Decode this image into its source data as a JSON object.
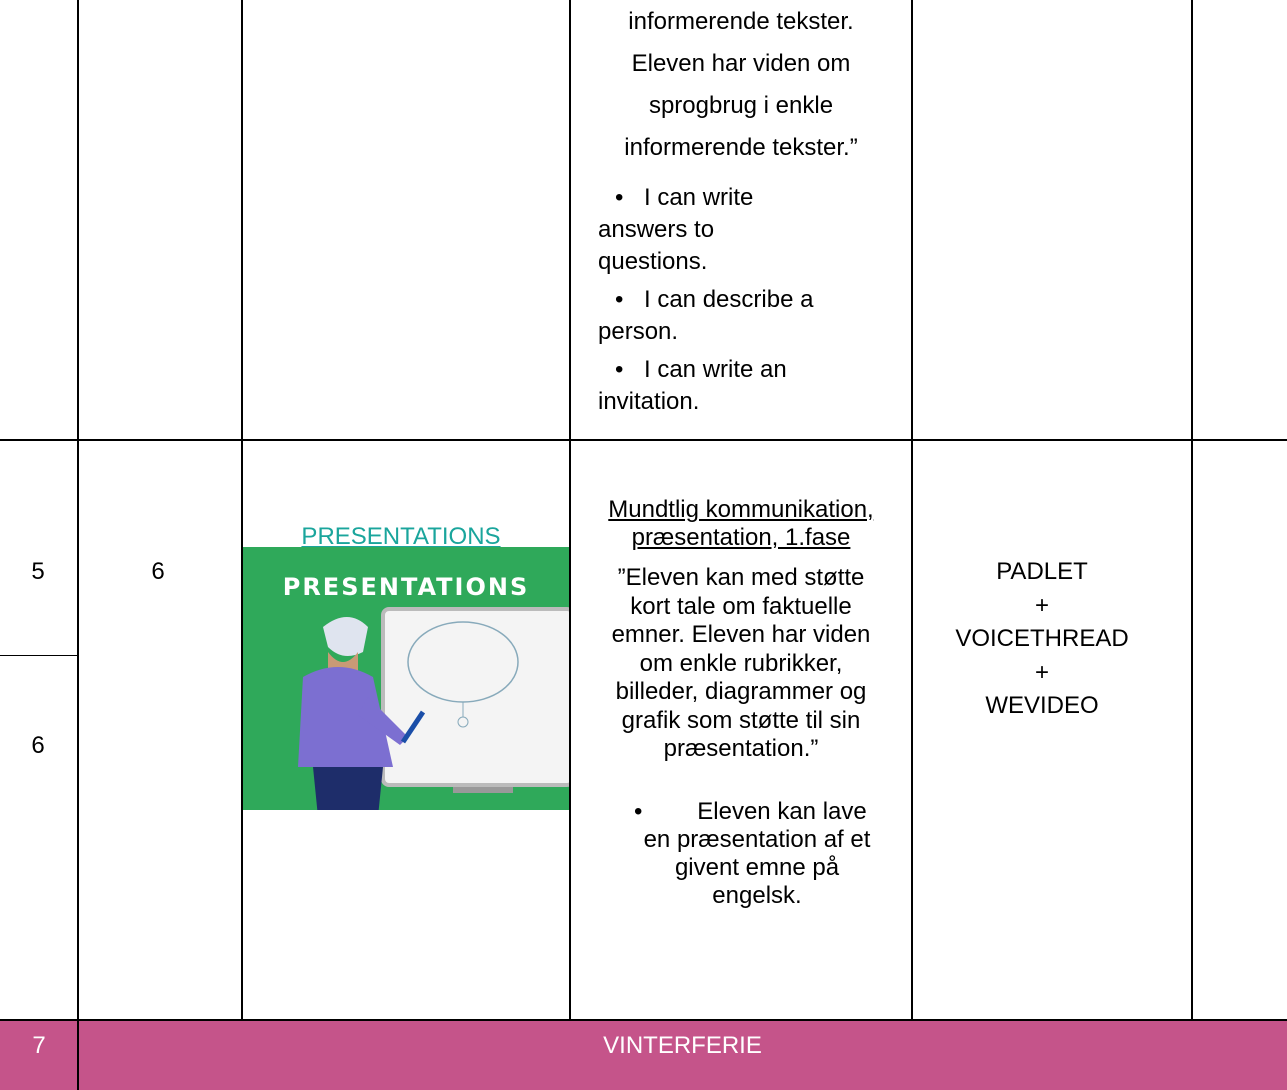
{
  "row_top": {
    "lines": [
      "informerende tekster.",
      "Eleven har viden om",
      "sprogbrug i enkle",
      "informerende tekster.”"
    ],
    "bullets": [
      [
        "I can write",
        "answers to",
        "questions."
      ],
      [
        "I can describe a",
        "person."
      ],
      [
        "I can write an",
        "invitation."
      ]
    ]
  },
  "row_presentations": {
    "week_a": "5",
    "week_b": "6",
    "lesson": "6",
    "link": "PRESENTATIONS",
    "image_caption": "PRESENTATIONS",
    "heading": [
      "Mundtlig kommunikation,",
      "præsentation, 1.fase"
    ],
    "lines": [
      "”Eleven kan med støtte",
      "kort tale om faktuelle",
      "emner. Eleven har viden",
      "om enkle rubrikker,",
      "billeder, diagrammer og",
      "grafik som støtte til sin",
      "præsentation.”"
    ],
    "bullets": [
      [
        "Eleven kan lave",
        "en præsentation af et",
        "givent emne på",
        "engelsk."
      ]
    ],
    "tools": [
      "PADLET",
      "+",
      "VOICETHREAD",
      "+",
      "WEVIDEO"
    ]
  },
  "row_holiday": {
    "week": "7",
    "label": "VINTERFERIE"
  }
}
